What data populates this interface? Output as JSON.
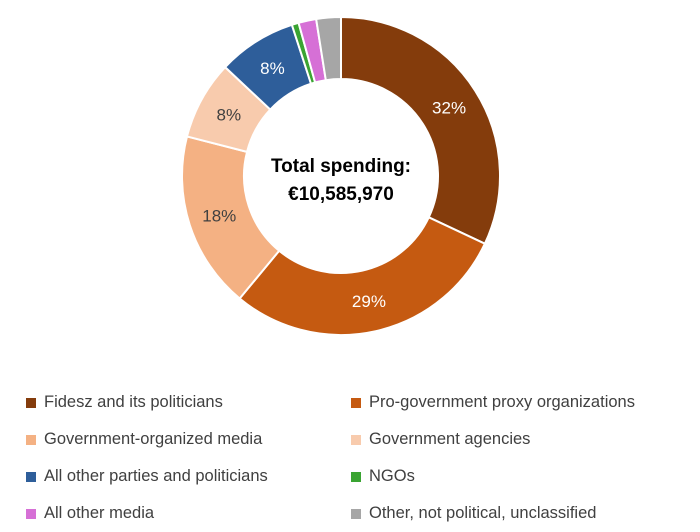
{
  "chart_data": {
    "type": "pie",
    "variant": "donut",
    "title": "",
    "center_label": {
      "line1": "Total spending:",
      "line2": "€10,585,970"
    },
    "slices": [
      {
        "name": "Fidesz and its politicians",
        "value": 32,
        "label": "32%",
        "color": "#843c0c",
        "label_color": "#ffffff"
      },
      {
        "name": "Pro-government proxy organizations",
        "value": 29,
        "label": "29%",
        "color": "#c55a11",
        "label_color": "#ffffff"
      },
      {
        "name": "Government-organized media",
        "value": 18,
        "label": "18%",
        "color": "#f4b183",
        "label_color": "#404040"
      },
      {
        "name": "Government agencies",
        "value": 8,
        "label": "8%",
        "color": "#f8cbad",
        "label_color": "#404040"
      },
      {
        "name": "All other parties and politicians",
        "value": 8,
        "label": "8%",
        "color": "#2e5e9a",
        "label_color": "#ffffff"
      },
      {
        "name": "NGOs",
        "value": 0.7,
        "label": "",
        "color": "#3aa432",
        "label_color": "#ffffff"
      },
      {
        "name": "All other media",
        "value": 1.8,
        "label": "",
        "color": "#d670d6",
        "label_color": "#ffffff"
      },
      {
        "name": "Other, not political, unclassified",
        "value": 2.5,
        "label": "",
        "color": "#a6a6a6",
        "label_color": "#ffffff"
      }
    ],
    "legend": {
      "placement": "bottom",
      "order": [
        0,
        1,
        2,
        3,
        4,
        5,
        6,
        7
      ]
    }
  }
}
